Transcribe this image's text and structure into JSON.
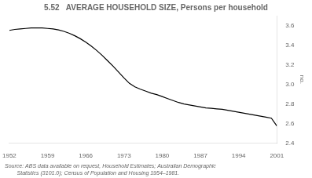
{
  "chart_data": {
    "type": "line",
    "title": "5.52   AVERAGE HOUSEHOLD SIZE, Persons per household",
    "ylabel": "no.",
    "annotations": [
      "Source: ABS data available on request, Household Estimates; Australian Demographic",
      "        Statistics (3101.0); Census of Population and Housing 1954–1981."
    ],
    "color": "#000000",
    "grid": false,
    "x": [
      1952,
      1953,
      1954,
      1955,
      1956,
      1957,
      1958,
      1959,
      1960,
      1961,
      1962,
      1963,
      1964,
      1965,
      1966,
      1967,
      1968,
      1969,
      1970,
      1971,
      1972,
      1973,
      1974,
      1975,
      1976,
      1977,
      1978,
      1979,
      1980,
      1981,
      1982,
      1983,
      1984,
      1985,
      1986,
      1987,
      1988,
      1989,
      1990,
      1991,
      1992,
      1993,
      1994,
      1995,
      1996,
      1997,
      1998,
      1999,
      2000,
      2001
    ],
    "values": [
      3.55,
      3.56,
      3.565,
      3.57,
      3.575,
      3.575,
      3.575,
      3.57,
      3.565,
      3.555,
      3.54,
      3.52,
      3.495,
      3.465,
      3.43,
      3.39,
      3.345,
      3.295,
      3.24,
      3.185,
      3.125,
      3.065,
      3.01,
      2.975,
      2.95,
      2.93,
      2.91,
      2.895,
      2.875,
      2.855,
      2.835,
      2.815,
      2.8,
      2.79,
      2.78,
      2.77,
      2.76,
      2.755,
      2.75,
      2.745,
      2.735,
      2.725,
      2.715,
      2.705,
      2.695,
      2.685,
      2.675,
      2.665,
      2.655,
      2.575
    ],
    "xlim": [
      1952,
      2001
    ],
    "xticks": [
      1952,
      1959,
      1966,
      1973,
      1980,
      1987,
      1994,
      2001
    ],
    "ylim": [
      2.4,
      3.7
    ],
    "yticks": [
      2.4,
      2.6,
      2.8,
      {
        "value": 3.0,
        "label": "3.0"
      },
      3.2,
      3.4,
      3.6
    ]
  }
}
